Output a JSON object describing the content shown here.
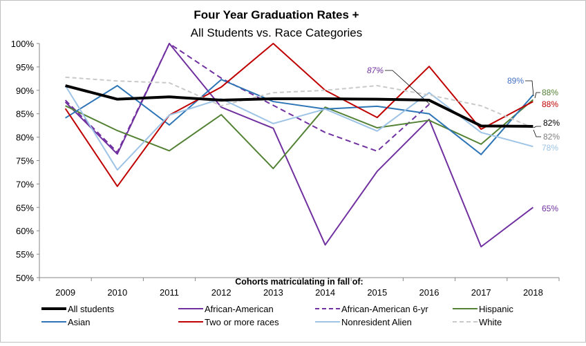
{
  "chart_data": {
    "type": "line",
    "title": "Four Year Graduation  Rates +",
    "subtitle": "All Students vs. Race Categories",
    "xlabel": "Cohorts matriculating in fall of:",
    "ylabel": "",
    "ylim": [
      50,
      100
    ],
    "yticks": [
      "50%",
      "55%",
      "60%",
      "65%",
      "70%",
      "75%",
      "80%",
      "85%",
      "90%",
      "95%",
      "100%"
    ],
    "grid": false,
    "legend": "bottom",
    "categories": [
      "2009",
      "2010",
      "2011",
      "2012",
      "2013",
      "2014",
      "2015",
      "2016",
      "2017",
      "2018"
    ],
    "series": [
      {
        "name": "All students",
        "color": "#000000",
        "dash": false,
        "width": 4,
        "values": [
          91.0,
          88.1,
          88.6,
          87.9,
          88.2,
          88.2,
          88.1,
          87.9,
          82.4,
          82.3
        ]
      },
      {
        "name": "African-American",
        "color": "#7030a0",
        "dash": false,
        "width": 2,
        "values": [
          87.5,
          76.4,
          100,
          86.4,
          81.9,
          57.0,
          72.7,
          83.8,
          56.6,
          65.0
        ]
      },
      {
        "name": "African-American 6-yr",
        "color": "#7030a0",
        "dash": true,
        "width": 2,
        "values": [
          87.9,
          76.8,
          100,
          92.6,
          86.8,
          81.0,
          77.0,
          87.0,
          null,
          null
        ]
      },
      {
        "name": "Hispanic",
        "color": "#548235",
        "dash": false,
        "width": 2,
        "values": [
          86.7,
          81.4,
          77.1,
          84.8,
          73.3,
          86.4,
          82.0,
          83.6,
          78.5,
          88.0
        ]
      },
      {
        "name": "Asian",
        "color": "#2e75b6",
        "dash": false,
        "width": 2,
        "values": [
          84.1,
          91.0,
          82.6,
          92.3,
          87.6,
          86.0,
          86.6,
          85.0,
          76.3,
          89.0
        ]
      },
      {
        "name": "Two or more races",
        "color": "#c00000",
        "dash": false,
        "width": 2,
        "values": [
          86.1,
          69.5,
          84.7,
          90.7,
          100,
          90.0,
          84.2,
          95.1,
          81.7,
          87.6
        ]
      },
      {
        "name": "Nonresident Alien",
        "color": "#9dc3e6",
        "dash": false,
        "width": 2,
        "values": [
          91.0,
          73.0,
          84.7,
          88.2,
          82.9,
          86.0,
          81.3,
          89.5,
          81.0,
          78.0
        ]
      },
      {
        "name": "White",
        "color": "#c9c9c9",
        "dash": true,
        "width": 2,
        "values": [
          92.8,
          92.0,
          91.6,
          86.7,
          89.5,
          90.0,
          91.0,
          89.0,
          86.7,
          82.0
        ]
      }
    ],
    "data_labels": [
      {
        "text": "87%",
        "series": "African-American 6-yr",
        "category": "2016",
        "color": "#7030a0",
        "italic": true
      },
      {
        "text": "89%",
        "series": "Asian",
        "category": "2018",
        "color": "#4472c4",
        "italic": false
      },
      {
        "text": "88%",
        "series": "Hispanic",
        "category": "2018",
        "color": "#548235",
        "italic": false
      },
      {
        "text": "88%",
        "series": "Two or more races",
        "category": "2018",
        "color": "#c00000",
        "italic": false
      },
      {
        "text": "82%",
        "series": "All students",
        "category": "2018",
        "color": "#000000",
        "italic": false
      },
      {
        "text": "82%",
        "series": "White",
        "category": "2018",
        "color": "#7f7f7f",
        "italic": false
      },
      {
        "text": "78%",
        "series": "Nonresident Alien",
        "category": "2018",
        "color": "#9dc3e6",
        "italic": false
      },
      {
        "text": "65%",
        "series": "African-American",
        "category": "2018",
        "color": "#7030a0",
        "italic": false
      }
    ]
  }
}
